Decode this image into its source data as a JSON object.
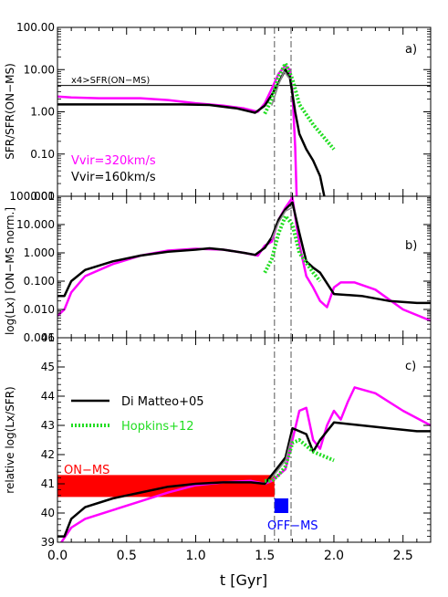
{
  "chart_data": [
    {
      "panel": "a)",
      "type": "line",
      "ylabel": "SFR/SFR(ON−MS)",
      "yscale": "log",
      "xlim": [
        0,
        2.7
      ],
      "ylim": [
        0.01,
        100
      ],
      "yticks": [
        0.01,
        0.1,
        1,
        10,
        100
      ],
      "ytick_labels": [
        "0.01",
        "0.10",
        "1.00",
        "10.00",
        "100.00"
      ],
      "hline": {
        "y": 4.2,
        "label": "x4>SFR(ON−MS)"
      },
      "text_labels": [
        {
          "text": "Vvir=320km/s",
          "color": "#ff00ff"
        },
        {
          "text": "Vvir=160km/s",
          "color": "#000000"
        }
      ],
      "series": [
        {
          "name": "Vvir=320km/s",
          "color": "#ff00ff",
          "style": "solid",
          "points": [
            [
              0,
              2.3
            ],
            [
              0.1,
              2.2
            ],
            [
              0.3,
              2.1
            ],
            [
              0.6,
              2.1
            ],
            [
              0.8,
              1.9
            ],
            [
              1.0,
              1.6
            ],
            [
              1.2,
              1.4
            ],
            [
              1.35,
              1.2
            ],
            [
              1.45,
              1.0
            ],
            [
              1.5,
              1.6
            ],
            [
              1.55,
              3.5
            ],
            [
              1.6,
              8.0
            ],
            [
              1.65,
              12.5
            ],
            [
              1.68,
              10.0
            ],
            [
              1.7,
              3.0
            ],
            [
              1.72,
              0.15
            ],
            [
              1.73,
              0.01
            ]
          ]
        },
        {
          "name": "Vvir=160km/s",
          "color": "#000000",
          "style": "solid",
          "points": [
            [
              0,
              1.5
            ],
            [
              0.3,
              1.5
            ],
            [
              0.6,
              1.5
            ],
            [
              0.9,
              1.5
            ],
            [
              1.1,
              1.45
            ],
            [
              1.3,
              1.2
            ],
            [
              1.43,
              0.95
            ],
            [
              1.5,
              1.4
            ],
            [
              1.55,
              2.5
            ],
            [
              1.6,
              5.0
            ],
            [
              1.65,
              10.0
            ],
            [
              1.68,
              7.0
            ],
            [
              1.72,
              1.0
            ],
            [
              1.75,
              0.3
            ],
            [
              1.8,
              0.13
            ],
            [
              1.85,
              0.07
            ],
            [
              1.9,
              0.03
            ],
            [
              1.93,
              0.01
            ]
          ]
        },
        {
          "name": "",
          "color": "#22dd22",
          "style": "dotted",
          "points": [
            [
              1.5,
              0.9
            ],
            [
              1.55,
              2.0
            ],
            [
              1.6,
              7.0
            ],
            [
              1.65,
              14.0
            ],
            [
              1.7,
              6.0
            ],
            [
              1.75,
              1.5
            ],
            [
              1.85,
              0.5
            ],
            [
              2.0,
              0.13
            ]
          ]
        },
        {
          "name": "",
          "color": "#888888",
          "style": "solid",
          "points": [
            [
              1.55,
              1.4
            ],
            [
              1.6,
              4.5
            ],
            [
              1.64,
              9.0
            ],
            [
              1.68,
              6.0
            ]
          ]
        }
      ]
    },
    {
      "panel": "b)",
      "type": "line",
      "ylabel": "log(Lx) [ON−MS norm.]",
      "yscale": "log",
      "xlim": [
        0,
        2.7
      ],
      "ylim": [
        0.001,
        100
      ],
      "yticks": [
        0.001,
        0.01,
        0.1,
        1,
        10,
        100
      ],
      "ytick_labels": [
        "0.001",
        "0.010",
        "0.100",
        "1.000",
        "10.000",
        "100.000"
      ],
      "series": [
        {
          "name": "Vvir=320km/s",
          "color": "#ff00ff",
          "style": "solid",
          "points": [
            [
              0,
              0.006
            ],
            [
              0.05,
              0.01
            ],
            [
              0.1,
              0.04
            ],
            [
              0.2,
              0.15
            ],
            [
              0.4,
              0.4
            ],
            [
              0.6,
              0.8
            ],
            [
              0.8,
              1.2
            ],
            [
              1.0,
              1.4
            ],
            [
              1.2,
              1.3
            ],
            [
              1.35,
              1.0
            ],
            [
              1.45,
              0.8
            ],
            [
              1.5,
              1.8
            ],
            [
              1.55,
              2.5
            ],
            [
              1.6,
              15
            ],
            [
              1.65,
              40
            ],
            [
              1.7,
              90
            ],
            [
              1.75,
              2.0
            ],
            [
              1.8,
              0.15
            ],
            [
              1.85,
              0.06
            ],
            [
              1.9,
              0.02
            ],
            [
              1.95,
              0.012
            ],
            [
              2.0,
              0.06
            ],
            [
              2.05,
              0.09
            ],
            [
              2.15,
              0.09
            ],
            [
              2.3,
              0.05
            ],
            [
              2.5,
              0.01
            ],
            [
              2.7,
              0.004
            ]
          ]
        },
        {
          "name": "Vvir=160km/s",
          "color": "#000000",
          "style": "solid",
          "points": [
            [
              0,
              0.03
            ],
            [
              0.05,
              0.03
            ],
            [
              0.1,
              0.1
            ],
            [
              0.2,
              0.25
            ],
            [
              0.4,
              0.5
            ],
            [
              0.6,
              0.8
            ],
            [
              0.8,
              1.1
            ],
            [
              1.0,
              1.3
            ],
            [
              1.1,
              1.45
            ],
            [
              1.2,
              1.3
            ],
            [
              1.35,
              1.0
            ],
            [
              1.43,
              0.85
            ],
            [
              1.5,
              1.5
            ],
            [
              1.55,
              3.5
            ],
            [
              1.6,
              15
            ],
            [
              1.65,
              35
            ],
            [
              1.7,
              60
            ],
            [
              1.75,
              5.0
            ],
            [
              1.8,
              0.5
            ],
            [
              1.85,
              0.3
            ],
            [
              1.9,
              0.2
            ],
            [
              2.0,
              0.035
            ],
            [
              2.2,
              0.03
            ],
            [
              2.4,
              0.02
            ],
            [
              2.6,
              0.017
            ],
            [
              2.7,
              0.017
            ]
          ]
        },
        {
          "name": "",
          "color": "#22dd22",
          "style": "dotted",
          "points": [
            [
              1.5,
              0.2
            ],
            [
              1.55,
              0.6
            ],
            [
              1.6,
              5.0
            ],
            [
              1.65,
              20
            ],
            [
              1.7,
              10
            ],
            [
              1.75,
              1.0
            ],
            [
              1.85,
              0.2
            ],
            [
              1.9,
              0.1
            ]
          ]
        },
        {
          "name": "",
          "color": "#888888",
          "style": "solid",
          "points": [
            [
              1.55,
              3.0
            ],
            [
              1.6,
              12
            ],
            [
              1.65,
              30
            ],
            [
              1.7,
              40
            ]
          ]
        }
      ]
    },
    {
      "panel": "c)",
      "type": "line",
      "ylabel": "relative log(Lx/SFR)",
      "xlabel": "t [Gyr]",
      "xlim": [
        0,
        2.7
      ],
      "ylim": [
        39,
        46
      ],
      "yticks": [
        39,
        40,
        41,
        42,
        43,
        44,
        45,
        46
      ],
      "xticks": [
        0.0,
        0.5,
        1.0,
        1.5,
        2.0,
        2.5
      ],
      "xtick_labels": [
        "0.0",
        "0.5",
        "1.0",
        "1.5",
        "2.0",
        "2.5"
      ],
      "legend": [
        {
          "label": "Di Matteo+05",
          "color": "#000000",
          "style": "solid"
        },
        {
          "label": "Hopkins+12",
          "color": "#22dd22",
          "style": "dotted"
        }
      ],
      "regions": [
        {
          "label": "ON−MS",
          "color": "#ff0000",
          "x": [
            0,
            1.57
          ],
          "y": [
            40.55,
            41.3
          ]
        },
        {
          "label": "OFF−MS",
          "color": "#0000ff",
          "x": [
            1.57,
            1.67
          ],
          "y": [
            40.0,
            40.5
          ]
        }
      ],
      "vlines": [
        1.57,
        1.69
      ],
      "series": [
        {
          "name": "Vvir=320km/s",
          "color": "#ff00ff",
          "style": "solid",
          "points": [
            [
              0,
              38.8
            ],
            [
              0.1,
              39.5
            ],
            [
              0.2,
              39.8
            ],
            [
              0.4,
              40.1
            ],
            [
              0.6,
              40.4
            ],
            [
              0.8,
              40.7
            ],
            [
              1.0,
              40.95
            ],
            [
              1.2,
              41.05
            ],
            [
              1.4,
              41.1
            ],
            [
              1.5,
              41.0
            ],
            [
              1.55,
              41.1
            ],
            [
              1.6,
              41.3
            ],
            [
              1.65,
              41.5
            ],
            [
              1.7,
              42.5
            ],
            [
              1.75,
              43.5
            ],
            [
              1.8,
              43.6
            ],
            [
              1.85,
              42.5
            ],
            [
              1.9,
              42.2
            ],
            [
              1.95,
              43.0
            ],
            [
              2.0,
              43.5
            ],
            [
              2.05,
              43.2
            ],
            [
              2.1,
              43.8
            ],
            [
              2.15,
              44.3
            ],
            [
              2.3,
              44.1
            ],
            [
              2.5,
              43.5
            ],
            [
              2.7,
              43.0
            ]
          ]
        },
        {
          "name": "Vvir=160km/s",
          "color": "#000000",
          "style": "solid",
          "points": [
            [
              0,
              39.2
            ],
            [
              0.05,
              39.2
            ],
            [
              0.1,
              39.8
            ],
            [
              0.2,
              40.2
            ],
            [
              0.4,
              40.5
            ],
            [
              0.6,
              40.7
            ],
            [
              0.8,
              40.9
            ],
            [
              1.0,
              41.0
            ],
            [
              1.2,
              41.05
            ],
            [
              1.4,
              41.05
            ],
            [
              1.5,
              41.0
            ],
            [
              1.55,
              41.3
            ],
            [
              1.6,
              41.6
            ],
            [
              1.65,
              41.9
            ],
            [
              1.7,
              42.9
            ],
            [
              1.75,
              42.8
            ],
            [
              1.8,
              42.7
            ],
            [
              1.85,
              42.1
            ],
            [
              1.9,
              42.5
            ],
            [
              2.0,
              43.1
            ],
            [
              2.2,
              43.0
            ],
            [
              2.4,
              42.9
            ],
            [
              2.6,
              42.8
            ],
            [
              2.7,
              42.8
            ]
          ]
        },
        {
          "name": "",
          "color": "#22dd22",
          "style": "dotted",
          "points": [
            [
              1.5,
              41.1
            ],
            [
              1.55,
              41.1
            ],
            [
              1.6,
              41.3
            ],
            [
              1.65,
              41.6
            ],
            [
              1.7,
              42.4
            ],
            [
              1.75,
              42.5
            ],
            [
              1.8,
              42.3
            ],
            [
              1.85,
              42.1
            ],
            [
              1.9,
              42.0
            ],
            [
              2.0,
              41.8
            ]
          ]
        },
        {
          "name": "",
          "color": "#888888",
          "style": "solid",
          "points": [
            [
              1.55,
              41.2
            ],
            [
              1.6,
              41.5
            ],
            [
              1.65,
              41.8
            ],
            [
              1.7,
              42.7
            ]
          ]
        }
      ]
    }
  ]
}
